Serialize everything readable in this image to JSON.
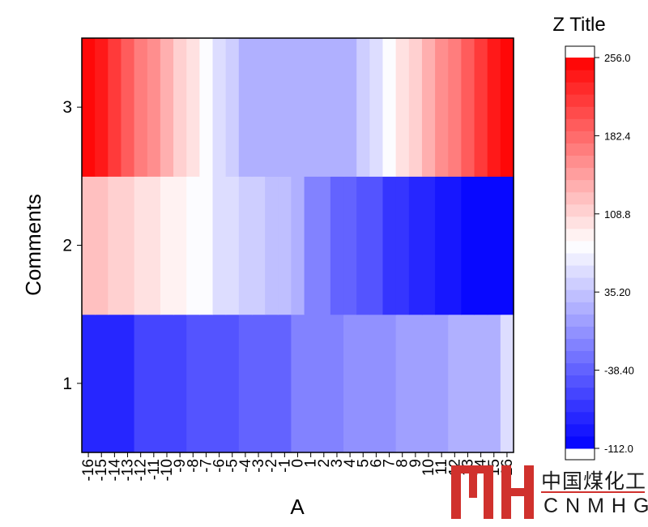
{
  "chart_data": {
    "type": "heatmap",
    "xlabel": "A",
    "ylabel": "Comments",
    "y_categories": [
      "1",
      "2",
      "3"
    ],
    "x_tick_labels": [
      "-16",
      "-15",
      "-14",
      "-13",
      "-12",
      "-11",
      "-10",
      "-9",
      "-8",
      "-7",
      "-6",
      "-5",
      "-4",
      "-3",
      "-2",
      "-1",
      "0",
      "1",
      "2",
      "3",
      "4",
      "5",
      "6",
      "7",
      "8",
      "9",
      "10",
      "11",
      "12",
      "13",
      "14",
      "15",
      "16"
    ],
    "rows": [
      {
        "y": "1",
        "segments": [
          {
            "x": [
              -16.5,
              -12.5
            ],
            "value": -78
          },
          {
            "x": [
              -12.5,
              -8.5
            ],
            "value": -62
          },
          {
            "x": [
              -8.5,
              -4.5
            ],
            "value": -48
          },
          {
            "x": [
              -4.5,
              -0.5
            ],
            "value": -38
          },
          {
            "x": [
              -0.5,
              3.5
            ],
            "value": -15
          },
          {
            "x": [
              3.5,
              7.5
            ],
            "value": -8
          },
          {
            "x": [
              7.5,
              11.5
            ],
            "value": 5
          },
          {
            "x": [
              11.5,
              15.5
            ],
            "value": 22
          },
          {
            "x": [
              15.5,
              16.5
            ],
            "value": 55
          }
        ]
      },
      {
        "y": "2",
        "x": [
          -16,
          -15,
          -14,
          -13,
          -12,
          -11,
          -10,
          -9,
          -8,
          -7,
          -6,
          -5,
          -4,
          -3,
          -2,
          -1,
          0,
          1,
          2,
          3,
          4,
          5,
          6,
          7,
          8,
          9,
          10,
          11,
          12,
          13,
          14,
          15,
          16
        ],
        "values": [
          120,
          120,
          114,
          114,
          104,
          104,
          90,
          90,
          72,
          72,
          56,
          56,
          44,
          44,
          32,
          32,
          18,
          -20,
          -20,
          -32,
          -32,
          -52,
          -52,
          -68,
          -68,
          -83,
          -83,
          -98,
          -98,
          -109,
          -109,
          -109,
          -109
        ]
      },
      {
        "y": "3",
        "x": [
          -16,
          -15,
          -14,
          -13,
          -12,
          -11,
          -10,
          -9,
          -8,
          -7,
          -6,
          -5,
          -4,
          -3,
          -2,
          -1,
          0,
          1,
          2,
          3,
          4,
          5,
          6,
          7,
          8,
          9,
          10,
          11,
          12,
          13,
          14,
          15,
          16
        ],
        "values": [
          256,
          235,
          218,
          195,
          172,
          155,
          136,
          112,
          96,
          72,
          52,
          40,
          15,
          15,
          15,
          15,
          15,
          15,
          15,
          15,
          15,
          40,
          52,
          72,
          96,
          112,
          136,
          155,
          172,
          195,
          218,
          235,
          256
        ]
      }
    ],
    "colorbar": {
      "title": "Z Title",
      "min": -112.0,
      "max": 256.0,
      "tick_values": [
        256.0,
        182.4,
        108.8,
        35.2,
        -38.4,
        -112.0
      ],
      "tick_labels": [
        "256.0",
        "182.4",
        "108.8",
        "35.20",
        "-38.40",
        "-112.0"
      ],
      "levels": 32,
      "color_low": "#0000ff",
      "color_mid": "#ffffff",
      "color_high": "#ff0000",
      "mid_value": 80
    },
    "grid": false,
    "legend": "right"
  },
  "watermark": {
    "text_cn": "中国煤化工",
    "text_en": "CNMHG",
    "accent": "#d0312d"
  }
}
